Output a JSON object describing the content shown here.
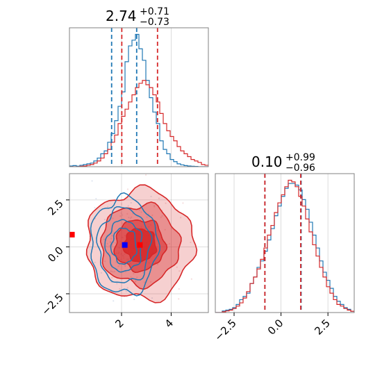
{
  "colors": {
    "blue": "#1f77b4",
    "red": "#d62728",
    "red_marker": "#ff0000",
    "blue_marker": "#0000ff",
    "grid": "#b0b0b0"
  },
  "chart_data": [
    {
      "type": "histogram",
      "panel": "top-left (parameter 1 marginal)",
      "title": {
        "median": "2.74",
        "plus": "+0.71",
        "minus": "−0.73"
      },
      "xlim": [
        -0.1,
        5.5
      ],
      "grid": true,
      "series": [
        {
          "color": "#1f77b4",
          "bin_start": -0.1,
          "bin_width": 0.14,
          "counts": [
            0.5,
            0.8,
            0.4,
            1,
            1.5,
            2,
            2.5,
            4,
            6,
            9,
            11,
            17,
            23,
            32,
            42,
            52,
            73,
            84,
            88,
            92,
            82,
            74,
            60,
            48,
            38,
            30,
            18,
            12,
            9,
            5,
            3.5,
            2,
            1.3,
            0.8,
            0.5,
            0.3,
            0.2,
            0,
            0,
            0,
            0
          ],
          "quantiles": [
            1.6,
            2.61
          ]
        },
        {
          "color": "#d62728",
          "bin_start": -0.1,
          "bin_width": 0.14,
          "counts": [
            0,
            0,
            0,
            0.3,
            0.5,
            1,
            1.5,
            2.5,
            4,
            6,
            9,
            12,
            17,
            22,
            30,
            35,
            40,
            45,
            50,
            55,
            58,
            60,
            57,
            55,
            50,
            45,
            37,
            30,
            25,
            21,
            18,
            14,
            11,
            9,
            7,
            5,
            4,
            3,
            1.5,
            1,
            0.4
          ],
          "quantiles": [
            2.01,
            3.45
          ]
        }
      ],
      "ticks": []
    },
    {
      "type": "contour",
      "panel": "bottom-left (2D joint distribution)",
      "xlim": [
        -0.1,
        5.5
      ],
      "ylim": [
        -3.5,
        3.9
      ],
      "xticks": [
        "2",
        "4"
      ],
      "yticks": [
        "−2.5",
        "0.0",
        "2.5"
      ],
      "grid": true,
      "series": [
        {
          "color": "#d62728",
          "filled": true,
          "center": [
            2.74,
            0.1
          ],
          "levels_sigma": [
            0.45,
            0.7,
            1.1,
            1.5
          ],
          "sigma": [
            0.72,
            0.97
          ]
        },
        {
          "color": "#1f77b4",
          "filled": false,
          "center": [
            2.1,
            0.05
          ],
          "levels_sigma": [
            0.5,
            0.72,
            1.05,
            1.35
          ],
          "sigma": [
            0.5,
            0.95
          ]
        }
      ],
      "markers": [
        {
          "color": "#ff0000",
          "x": 0.0,
          "y": 0.65
        },
        {
          "color": "#ff0000",
          "x": 2.74,
          "y": 0.1
        },
        {
          "color": "#0000ff",
          "x": 2.13,
          "y": 0.1
        }
      ]
    },
    {
      "type": "histogram",
      "panel": "bottom-right (parameter 2 marginal)",
      "title": {
        "median": "0.10",
        "plus": "+0.99",
        "minus": "−0.96"
      },
      "xlim": [
        -3.5,
        3.9
      ],
      "xticks": [
        "−2.5",
        "0.0",
        "2.5"
      ],
      "grid": true,
      "series": [
        {
          "color": "#1f77b4",
          "bin_start": -3.5,
          "bin_width": 0.185,
          "counts": [
            0,
            0,
            1,
            1.5,
            2,
            3,
            5,
            8,
            10,
            12,
            18,
            22,
            28,
            32,
            38,
            45,
            52,
            60,
            66,
            72,
            77,
            80,
            80,
            79,
            76,
            70,
            64,
            56,
            48,
            40,
            32,
            25,
            20,
            15,
            10,
            7,
            5,
            3,
            2,
            0.8
          ],
          "quantiles": [
            -0.86,
            1.07
          ]
        },
        {
          "color": "#d62728",
          "bin_start": -3.5,
          "bin_width": 0.185,
          "counts": [
            0,
            0,
            0.5,
            1,
            1.5,
            2.5,
            4,
            6,
            9,
            13,
            18,
            22,
            27,
            33,
            40,
            48,
            54,
            62,
            68,
            73,
            78,
            82,
            81,
            78,
            72,
            66,
            58,
            50,
            42,
            35,
            28,
            22,
            16,
            12,
            8,
            5,
            4,
            2.5,
            1.5,
            0.8
          ],
          "quantiles": [
            -0.86,
            1.05
          ]
        }
      ]
    }
  ]
}
